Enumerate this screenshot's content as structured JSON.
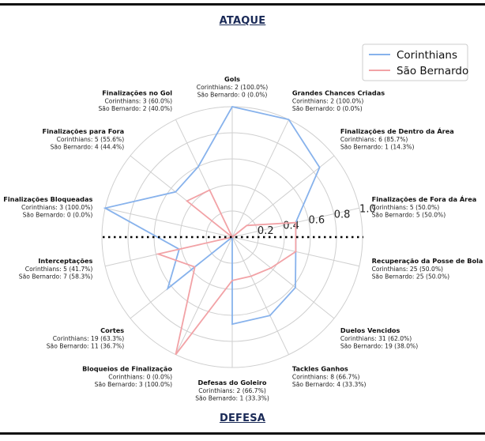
{
  "header": {
    "title": "ATAQUE"
  },
  "footer": {
    "title": "DEFESA"
  },
  "legend": {
    "placement": "top-right"
  },
  "colors": {
    "corinthians": "#87b2ec",
    "sao_bernardo": "#f2a2a6",
    "grid": "#cfcfcf",
    "divider": "#000000"
  },
  "chart_data": {
    "type": "radar",
    "rlim": [
      0,
      1
    ],
    "rticks": [
      "0.2",
      "0.4",
      "0.6",
      "0.8",
      "1.0"
    ],
    "series": [
      {
        "name": "Corinthians",
        "key": "corinthians"
      },
      {
        "name": "São Bernardo",
        "key": "sao_bernardo"
      }
    ],
    "axes": [
      {
        "label": "Gols",
        "corinthians": 1.0,
        "sao_bernardo": 0.0,
        "lines": [
          "Corinthians: 2 (100.0%)",
          "São Bernardo: 0 (0.0%)"
        ]
      },
      {
        "label": "Grandes Chances Criadas",
        "corinthians": 1.0,
        "sao_bernardo": 0.0,
        "lines": [
          "Corinthians: 2 (100.0%)",
          "São Bernardo: 0 (0.0%)"
        ]
      },
      {
        "label": "Finalizações de Dentro da Área",
        "corinthians": 0.857,
        "sao_bernardo": 0.143,
        "lines": [
          "Corinthians: 6 (85.7%)",
          "São Bernardo: 1 (14.3%)"
        ]
      },
      {
        "label": "Finalizações de Fora da Área",
        "corinthians": 0.5,
        "sao_bernardo": 0.5,
        "lines": [
          "Corinthians: 5 (50.0%)",
          "São Bernardo: 5 (50.0%)"
        ]
      },
      {
        "label": "Recuperação da Posse de Bola",
        "corinthians": 0.5,
        "sao_bernardo": 0.5,
        "lines": [
          "Corinthians: 25 (50.0%)",
          "São Bernardo: 25 (50.0%)"
        ]
      },
      {
        "label": "Duelos Vencidos",
        "corinthians": 0.62,
        "sao_bernardo": 0.38,
        "lines": [
          "Corinthians: 31 (62.0%)",
          "São Bernardo: 19 (38.0%)"
        ]
      },
      {
        "label": "Tackles Ganhos",
        "corinthians": 0.667,
        "sao_bernardo": 0.333,
        "lines": [
          "Corinthians: 8 (66.7%)",
          "São Bernardo: 4 (33.3%)"
        ]
      },
      {
        "label": "Defesas do Goleiro",
        "corinthians": 0.667,
        "sao_bernardo": 0.333,
        "lines": [
          "Corinthians: 2 (66.7%)",
          "São Bernardo: 1 (33.3%)"
        ]
      },
      {
        "label": "Bloqueios de Finalização",
        "corinthians": 0.0,
        "sao_bernardo": 1.0,
        "lines": [
          "Corinthians: 0 (0.0%)",
          "São Bernardo: 3 (100.0%)"
        ]
      },
      {
        "label": "Cortes",
        "corinthians": 0.633,
        "sao_bernardo": 0.367,
        "lines": [
          "Corinthians: 19 (63.3%)",
          "São Bernardo: 11 (36.7%)"
        ]
      },
      {
        "label": "Interceptações",
        "corinthians": 0.417,
        "sao_bernardo": 0.583,
        "lines": [
          "Corinthians: 5 (41.7%)",
          "São Bernardo: 7 (58.3%)"
        ]
      },
      {
        "label": "Finalizações Bloqueadas",
        "corinthians": 1.0,
        "sao_bernardo": 0.0,
        "lines": [
          "Corinthians: 3 (100.0%)",
          "São Bernardo: 0 (0.0%)"
        ]
      },
      {
        "label": "Finalizações para Fora",
        "corinthians": 0.556,
        "sao_bernardo": 0.444,
        "lines": [
          "Corinthians: 5 (55.6%)",
          "São Bernardo: 4 (44.4%)"
        ]
      },
      {
        "label": "Finalizações no Gol",
        "corinthians": 0.6,
        "sao_bernardo": 0.4,
        "lines": [
          "Corinthians: 3 (60.0%)",
          "São Bernardo: 2 (40.0%)"
        ]
      }
    ]
  }
}
